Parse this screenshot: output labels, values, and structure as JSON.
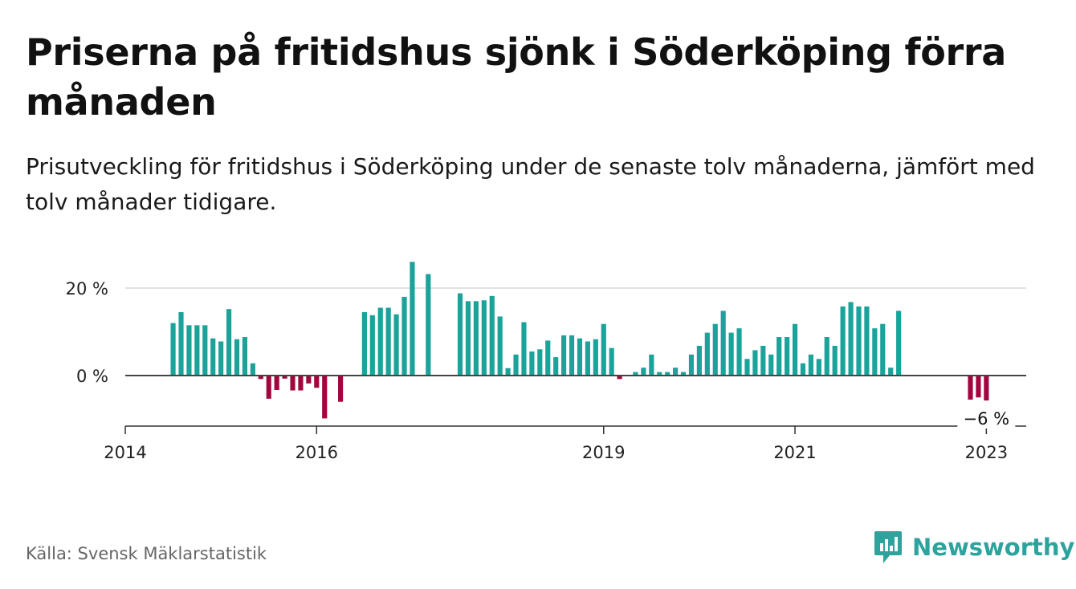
{
  "title": "Priserna på fritidshus sjönk i Söderköping förra månaden",
  "subtitle": "Prisutveckling för fritidshus i Söderköping under de senaste tolv månaderna, jämfört med tolv månader tidigare.",
  "source": "Källa: Svensk Mäklarstatistik",
  "brand": {
    "name": "Newsworthy",
    "icon": "newsworthy-logo-icon",
    "color": "#2ea39d"
  },
  "colors": {
    "positive": "#1aa39a",
    "negative": "#a3063f",
    "zero_line": "#444444",
    "grid": "#d9d9d9",
    "axis": "#333333"
  },
  "chart_data": {
    "type": "bar",
    "title": "",
    "xlabel": "",
    "ylabel": "",
    "ylim": [
      -12,
      26
    ],
    "y_ticks": [
      {
        "value": 0,
        "label": "0 %"
      },
      {
        "value": 20,
        "label": "20 %"
      }
    ],
    "x_ticks": [
      {
        "date": "2014-01",
        "label": "2014"
      },
      {
        "date": "2016-01",
        "label": "2016"
      },
      {
        "date": "2019-01",
        "label": "2019"
      },
      {
        "date": "2021-01",
        "label": "2021"
      },
      {
        "date": "2023-01",
        "label": "2023"
      }
    ],
    "x_range": [
      "2014-01",
      "2023-06"
    ],
    "annotation": {
      "date": "2023-01",
      "value": -6,
      "label": "−6 %"
    },
    "series": [
      {
        "values": [
          {
            "x": "2014-07",
            "y": 12
          },
          {
            "x": "2014-08",
            "y": 14.5
          },
          {
            "x": "2014-09",
            "y": 11.5
          },
          {
            "x": "2014-10",
            "y": 11.5
          },
          {
            "x": "2014-11",
            "y": 11.5
          },
          {
            "x": "2014-12",
            "y": 8.5
          },
          {
            "x": "2015-01",
            "y": 7.8
          },
          {
            "x": "2015-02",
            "y": 15.2
          },
          {
            "x": "2015-03",
            "y": 8.3
          },
          {
            "x": "2015-04",
            "y": 8.8
          },
          {
            "x": "2015-05",
            "y": 2.8
          },
          {
            "x": "2015-06",
            "y": -0.8
          },
          {
            "x": "2015-07",
            "y": -5.3
          },
          {
            "x": "2015-08",
            "y": -3.3
          },
          {
            "x": "2015-09",
            "y": -0.7
          },
          {
            "x": "2015-10",
            "y": -3.4
          },
          {
            "x": "2015-11",
            "y": -3.4
          },
          {
            "x": "2015-12",
            "y": -1.8
          },
          {
            "x": "2016-01",
            "y": -2.8
          },
          {
            "x": "2016-02",
            "y": -9.8
          },
          {
            "x": "2016-04",
            "y": -6
          },
          {
            "x": "2016-07",
            "y": 14.5
          },
          {
            "x": "2016-08",
            "y": 13.8
          },
          {
            "x": "2016-09",
            "y": 15.5
          },
          {
            "x": "2016-10",
            "y": 15.5
          },
          {
            "x": "2016-11",
            "y": 14
          },
          {
            "x": "2016-12",
            "y": 18
          },
          {
            "x": "2017-01",
            "y": 26
          },
          {
            "x": "2017-03",
            "y": 23.2
          },
          {
            "x": "2017-07",
            "y": 18.8
          },
          {
            "x": "2017-08",
            "y": 17
          },
          {
            "x": "2017-09",
            "y": 17
          },
          {
            "x": "2017-10",
            "y": 17.2
          },
          {
            "x": "2017-11",
            "y": 18.2
          },
          {
            "x": "2017-12",
            "y": 13.5
          },
          {
            "x": "2018-01",
            "y": 1.7
          },
          {
            "x": "2018-02",
            "y": 4.8
          },
          {
            "x": "2018-03",
            "y": 12.2
          },
          {
            "x": "2018-04",
            "y": 5.5
          },
          {
            "x": "2018-05",
            "y": 6
          },
          {
            "x": "2018-06",
            "y": 8
          },
          {
            "x": "2018-07",
            "y": 4.2
          },
          {
            "x": "2018-08",
            "y": 9.2
          },
          {
            "x": "2018-09",
            "y": 9.2
          },
          {
            "x": "2018-10",
            "y": 8.5
          },
          {
            "x": "2018-11",
            "y": 7.8
          },
          {
            "x": "2018-12",
            "y": 8.3
          },
          {
            "x": "2019-01",
            "y": 11.8
          },
          {
            "x": "2019-02",
            "y": 6.3
          },
          {
            "x": "2019-03",
            "y": -0.8
          },
          {
            "x": "2019-05",
            "y": 0.8
          },
          {
            "x": "2019-06",
            "y": 1.8
          },
          {
            "x": "2019-07",
            "y": 4.8
          },
          {
            "x": "2019-08",
            "y": 0.8
          },
          {
            "x": "2019-09",
            "y": 0.8
          },
          {
            "x": "2019-10",
            "y": 1.8
          },
          {
            "x": "2019-11",
            "y": 0.8
          },
          {
            "x": "2019-12",
            "y": 4.8
          },
          {
            "x": "2020-01",
            "y": 6.8
          },
          {
            "x": "2020-02",
            "y": 9.8
          },
          {
            "x": "2020-03",
            "y": 11.8
          },
          {
            "x": "2020-04",
            "y": 14.8
          },
          {
            "x": "2020-05",
            "y": 9.8
          },
          {
            "x": "2020-06",
            "y": 10.8
          },
          {
            "x": "2020-07",
            "y": 3.8
          },
          {
            "x": "2020-08",
            "y": 5.8
          },
          {
            "x": "2020-09",
            "y": 6.8
          },
          {
            "x": "2020-10",
            "y": 4.8
          },
          {
            "x": "2020-11",
            "y": 8.8
          },
          {
            "x": "2020-12",
            "y": 8.8
          },
          {
            "x": "2021-01",
            "y": 11.8
          },
          {
            "x": "2021-02",
            "y": 2.8
          },
          {
            "x": "2021-03",
            "y": 4.8
          },
          {
            "x": "2021-04",
            "y": 3.8
          },
          {
            "x": "2021-05",
            "y": 8.8
          },
          {
            "x": "2021-06",
            "y": 6.8
          },
          {
            "x": "2021-07",
            "y": 15.8
          },
          {
            "x": "2021-08",
            "y": 16.8
          },
          {
            "x": "2021-09",
            "y": 15.8
          },
          {
            "x": "2021-10",
            "y": 15.8
          },
          {
            "x": "2021-11",
            "y": 10.8
          },
          {
            "x": "2021-12",
            "y": 11.8
          },
          {
            "x": "2022-01",
            "y": 1.8
          },
          {
            "x": "2022-02",
            "y": 14.8
          },
          {
            "x": "2022-11",
            "y": -5.5
          },
          {
            "x": "2022-12",
            "y": -5
          },
          {
            "x": "2023-01",
            "y": -5.7
          }
        ]
      }
    ]
  }
}
